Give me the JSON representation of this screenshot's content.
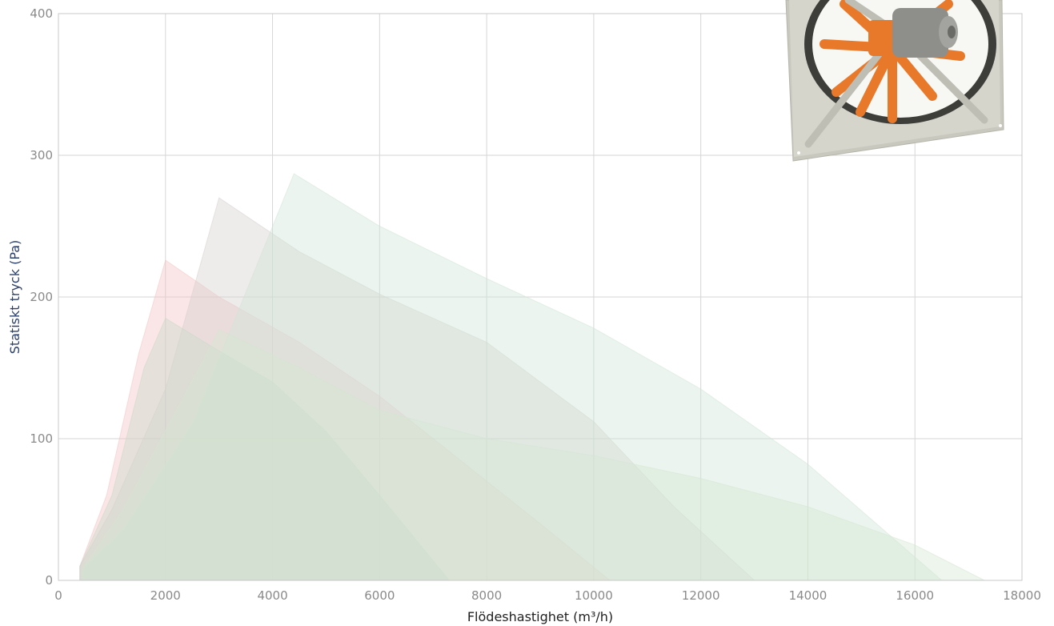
{
  "chart_data": {
    "type": "area",
    "xlabel": "Flödeshastighet (m³/h)",
    "ylabel": "Statiskt tryck (Pa)",
    "xlim": [
      0,
      18000
    ],
    "ylim": [
      0,
      400
    ],
    "x_ticks": [
      0,
      2000,
      4000,
      6000,
      8000,
      10000,
      12000,
      14000,
      16000,
      18000
    ],
    "y_ticks": [
      0,
      100,
      200,
      300,
      400
    ],
    "grid": true,
    "legend": "none",
    "series": [
      {
        "color": "#f4c4c4",
        "points": [
          [
            400,
            10
          ],
          [
            900,
            60
          ],
          [
            1500,
            160
          ],
          [
            2000,
            226
          ],
          [
            3000,
            200
          ],
          [
            4500,
            168
          ],
          [
            6000,
            130
          ],
          [
            7500,
            85
          ],
          [
            9000,
            40
          ],
          [
            10300,
            0
          ]
        ]
      },
      {
        "color": "#d7d0d0",
        "points": [
          [
            400,
            10
          ],
          [
            1000,
            50
          ],
          [
            2000,
            135
          ],
          [
            3000,
            270
          ],
          [
            4500,
            232
          ],
          [
            6000,
            202
          ],
          [
            8000,
            168
          ],
          [
            10000,
            112
          ],
          [
            11500,
            52
          ],
          [
            13000,
            0
          ]
        ]
      },
      {
        "color": "#cfe5d6",
        "points": [
          [
            450,
            8
          ],
          [
            1200,
            35
          ],
          [
            2500,
            110
          ],
          [
            4400,
            287
          ],
          [
            6000,
            250
          ],
          [
            8000,
            213
          ],
          [
            10000,
            178
          ],
          [
            12000,
            135
          ],
          [
            14000,
            82
          ],
          [
            16500,
            0
          ]
        ]
      },
      {
        "color": "#c9dac9",
        "points": [
          [
            400,
            10
          ],
          [
            1000,
            60
          ],
          [
            1600,
            150
          ],
          [
            2000,
            185
          ],
          [
            3000,
            162
          ],
          [
            4000,
            140
          ],
          [
            5000,
            105
          ],
          [
            6000,
            60
          ],
          [
            7300,
            0
          ]
        ]
      },
      {
        "color": "#d5e6d2",
        "points": [
          [
            450,
            8
          ],
          [
            1200,
            50
          ],
          [
            2200,
            120
          ],
          [
            3000,
            177
          ],
          [
            4500,
            150
          ],
          [
            6000,
            120
          ],
          [
            8000,
            100
          ],
          [
            10000,
            88
          ],
          [
            12000,
            72
          ],
          [
            14000,
            52
          ],
          [
            16000,
            25
          ],
          [
            17300,
            0
          ]
        ]
      }
    ]
  },
  "fan_image": {
    "icon": "axial-fan-image"
  }
}
